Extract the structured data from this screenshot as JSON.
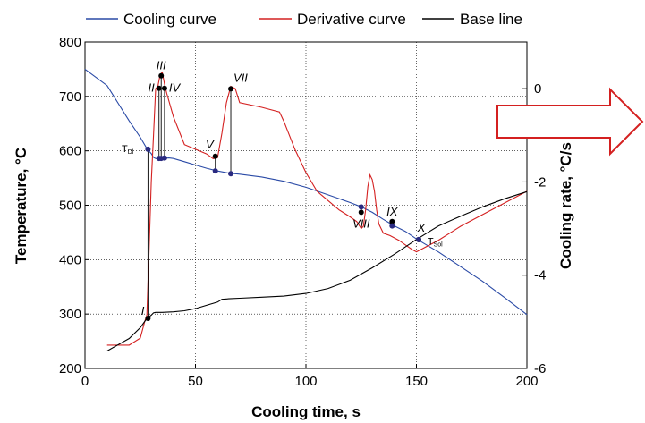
{
  "chart_data": {
    "type": "line",
    "xlabel": "Cooling time, s",
    "ylabel": "Temperature, °C",
    "y2label": "Cooling rate, °C/s",
    "xlim": [
      0,
      200
    ],
    "ylim": [
      200,
      800
    ],
    "y2lim": [
      -6,
      1
    ],
    "x_ticks": [
      0,
      50,
      100,
      150,
      200
    ],
    "y_ticks": [
      200,
      300,
      400,
      500,
      600,
      700,
      800
    ],
    "y2_ticks": [
      -6,
      -4,
      -2,
      0
    ],
    "grid": true,
    "legend_position": "top",
    "series": [
      {
        "name": "Cooling curve",
        "axis": "left",
        "color": "#2a4aa6",
        "x": [
          0,
          10,
          20,
          25,
          28,
          30,
          31,
          32,
          33,
          35,
          38,
          40,
          45,
          50,
          55,
          60,
          65,
          70,
          80,
          90,
          100,
          110,
          120,
          125,
          130,
          135,
          140,
          145,
          150,
          160,
          170,
          180,
          190,
          200
        ],
        "y": [
          750,
          720,
          655,
          625,
          604,
          595,
          588,
          586,
          585,
          586,
          587,
          586,
          580,
          574,
          568,
          563,
          559,
          557,
          552,
          544,
          533,
          519,
          505,
          497,
          487,
          474,
          462,
          452,
          438,
          414,
          387,
          360,
          330,
          299
        ]
      },
      {
        "name": "Derivative curve",
        "axis": "right",
        "color": "#d42020",
        "x": [
          10,
          15,
          20,
          25,
          27,
          28,
          29,
          30,
          31,
          32,
          33,
          34,
          35,
          36,
          37,
          40,
          45,
          50,
          55,
          58,
          60,
          62,
          64,
          66,
          68,
          70,
          80,
          88,
          90,
          95,
          100,
          105,
          110,
          115,
          120,
          123,
          125,
          126,
          127,
          128,
          129,
          130,
          131,
          132,
          133,
          135,
          138,
          140,
          142,
          145,
          148,
          150,
          160,
          170,
          180,
          190,
          200
        ],
        "y": [
          -5.5,
          -5.5,
          -5.5,
          -5.35,
          -5.0,
          -4.85,
          -3.5,
          -2.0,
          -1.0,
          0.0,
          0.05,
          0.3,
          0.35,
          0.1,
          -0.1,
          -0.6,
          -1.2,
          -1.3,
          -1.4,
          -1.5,
          -1.48,
          -0.95,
          -0.3,
          0.05,
          0.0,
          -0.3,
          -0.4,
          -0.5,
          -0.7,
          -1.3,
          -1.8,
          -2.2,
          -2.4,
          -2.6,
          -2.75,
          -2.85,
          -3.0,
          -2.95,
          -2.6,
          -2.1,
          -1.85,
          -1.95,
          -2.2,
          -2.6,
          -2.9,
          -3.1,
          -3.15,
          -3.2,
          -3.25,
          -3.35,
          -3.45,
          -3.5,
          -3.25,
          -2.95,
          -2.7,
          -2.45,
          -2.2
        ]
      },
      {
        "name": "Base line",
        "axis": "left",
        "color": "#000000",
        "x": [
          10,
          20,
          25,
          28,
          30,
          31,
          32,
          35,
          40,
          45,
          50,
          55,
          60,
          62,
          65,
          70,
          80,
          90,
          100,
          110,
          120,
          130,
          140,
          150,
          160,
          170,
          180,
          190,
          200
        ],
        "y": [
          232,
          255,
          275,
          292,
          298,
          302,
          303,
          303,
          304,
          306,
          310,
          316,
          322,
          327,
          328,
          329,
          331,
          333,
          338,
          347,
          362,
          385,
          410,
          437,
          462,
          480,
          497,
          512,
          525
        ]
      }
    ],
    "markers": [
      {
        "label": "I",
        "x": 28.5,
        "y": 292
      },
      {
        "label": "II",
        "x": 33.5,
        "y": 715
      },
      {
        "label": "III",
        "x": 34.5,
        "y": 738
      },
      {
        "label": "IV",
        "x": 36,
        "y": 715
      },
      {
        "label": "V",
        "x": 59,
        "y": 590
      },
      {
        "label": "VII",
        "x": 66,
        "y": 714
      },
      {
        "label": "VIII",
        "x": 125,
        "y": 487
      },
      {
        "label": "IX",
        "x": 139,
        "y": 470
      },
      {
        "label": "X",
        "x": 151,
        "y": 437
      }
    ],
    "cooling_curve_points": [
      {
        "x": 28.5,
        "y": 603
      },
      {
        "x": 33.5,
        "y": 586
      },
      {
        "x": 34.5,
        "y": 586
      },
      {
        "x": 36,
        "y": 587
      },
      {
        "x": 59,
        "y": 563
      },
      {
        "x": 66,
        "y": 558
      },
      {
        "x": 125,
        "y": 497
      },
      {
        "x": 139,
        "y": 462
      },
      {
        "x": 151,
        "y": 437
      }
    ],
    "temperature_annotations": [
      {
        "main": "T",
        "sub": "Dl",
        "x": 22,
        "y": 598
      },
      {
        "main": "T",
        "sub": "Sol",
        "x": 155,
        "y": 428
      }
    ]
  }
}
